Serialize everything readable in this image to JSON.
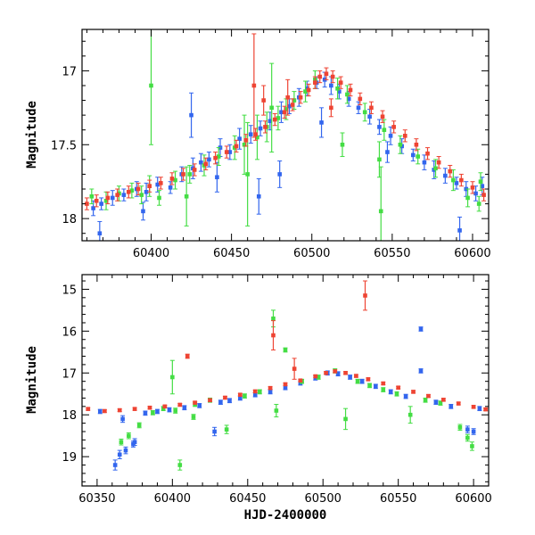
{
  "chart_data": [
    {
      "type": "scatter",
      "xlabel": "",
      "ylabel": "Magnitude",
      "xlim": [
        60357,
        60610
      ],
      "ylim": [
        18.15,
        16.72
      ],
      "y_inverted": true,
      "xticks": [
        60400,
        60450,
        60500,
        60550,
        60600
      ],
      "yticks": [
        17,
        17.5,
        18
      ],
      "xtick_labels": [
        "60400",
        "60450",
        "60500",
        "60550",
        "60600"
      ],
      "ytick_labels": [
        "17",
        "17.5",
        "18"
      ],
      "grid": false,
      "legend": "none",
      "series": [
        {
          "color": "#3366ee",
          "x": [
            60364,
            60369,
            60376,
            60383,
            60391,
            60397,
            60404,
            60412,
            60419,
            60426,
            60431,
            60436,
            60443,
            60449,
            60455,
            60462,
            60468,
            60474,
            60481,
            60486,
            60492,
            60497,
            60503,
            60508,
            60512,
            60517,
            60523,
            60529,
            60536,
            60542,
            60549,
            60556,
            60563,
            60570,
            60576,
            60583,
            60590,
            60596,
            60602,
            60606,
            60368,
            60395,
            60425,
            60441,
            60467,
            60480,
            60506,
            60547,
            60592
          ],
          "y": [
            17.93,
            17.9,
            17.86,
            17.84,
            17.8,
            17.82,
            17.77,
            17.79,
            17.7,
            17.66,
            17.62,
            17.6,
            17.52,
            17.55,
            17.46,
            17.43,
            17.39,
            17.34,
            17.28,
            17.24,
            17.18,
            17.12,
            17.08,
            17.06,
            17.1,
            17.14,
            17.19,
            17.25,
            17.31,
            17.38,
            17.44,
            17.51,
            17.57,
            17.62,
            17.67,
            17.71,
            17.76,
            17.8,
            17.83,
            17.78,
            18.1,
            17.95,
            17.3,
            17.72,
            17.85,
            17.7,
            17.35,
            17.55,
            18.08
          ],
          "err": [
            0.05,
            0.04,
            0.05,
            0.04,
            0.05,
            0.06,
            0.05,
            0.04,
            0.05,
            0.07,
            0.06,
            0.05,
            0.06,
            0.05,
            0.07,
            0.06,
            0.05,
            0.06,
            0.07,
            0.05,
            0.06,
            0.05,
            0.04,
            0.05,
            0.06,
            0.05,
            0.05,
            0.04,
            0.05,
            0.05,
            0.06,
            0.05,
            0.04,
            0.05,
            0.06,
            0.05,
            0.04,
            0.05,
            0.05,
            0.06,
            0.08,
            0.06,
            0.15,
            0.1,
            0.12,
            0.09,
            0.1,
            0.07,
            0.09
          ]
        },
        {
          "color": "#44dd44",
          "x": [
            60363,
            60372,
            60380,
            60388,
            60394,
            60399,
            60405,
            60415,
            60424,
            60433,
            60442,
            60452,
            60458,
            60466,
            60472,
            60479,
            60484,
            60489,
            60496,
            60502,
            60516,
            60522,
            60533,
            60545,
            60555,
            60566,
            60577,
            60588,
            60597,
            60604,
            60400,
            60422,
            60460,
            60475,
            60519,
            60542,
            60543,
            60605
          ],
          "y": [
            17.85,
            17.88,
            17.83,
            17.81,
            17.84,
            17.78,
            17.86,
            17.74,
            17.7,
            17.64,
            17.58,
            17.52,
            17.5,
            17.45,
            17.38,
            17.32,
            17.26,
            17.2,
            17.14,
            17.06,
            17.12,
            17.16,
            17.28,
            17.4,
            17.5,
            17.58,
            17.66,
            17.74,
            17.86,
            17.9,
            17.1,
            17.85,
            17.7,
            17.25,
            17.5,
            17.6,
            17.95,
            17.75
          ],
          "err": [
            0.05,
            0.06,
            0.05,
            0.05,
            0.06,
            0.07,
            0.05,
            0.06,
            0.06,
            0.07,
            0.06,
            0.08,
            0.2,
            0.15,
            0.1,
            0.08,
            0.07,
            0.06,
            0.07,
            0.06,
            0.07,
            0.06,
            0.06,
            0.07,
            0.06,
            0.05,
            0.06,
            0.07,
            0.06,
            0.05,
            0.4,
            0.2,
            0.35,
            0.3,
            0.08,
            0.12,
            0.3,
            0.06
          ]
        },
        {
          "color": "#ee4433",
          "x": [
            60360,
            60366,
            60373,
            60379,
            60386,
            60392,
            60399,
            60406,
            60413,
            60420,
            60427,
            60434,
            60440,
            60447,
            60453,
            60459,
            60465,
            60471,
            60477,
            60483,
            60488,
            60493,
            60498,
            60502,
            60505,
            60509,
            60513,
            60518,
            60524,
            60530,
            60537,
            60544,
            60551,
            60558,
            60565,
            60572,
            60579,
            60586,
            60593,
            60600,
            60607,
            60464,
            60470,
            60485,
            60512
          ],
          "y": [
            17.9,
            17.88,
            17.86,
            17.84,
            17.82,
            17.8,
            17.78,
            17.76,
            17.73,
            17.7,
            17.67,
            17.63,
            17.59,
            17.55,
            17.51,
            17.47,
            17.43,
            17.38,
            17.33,
            17.28,
            17.23,
            17.18,
            17.13,
            17.08,
            17.04,
            17.02,
            17.04,
            17.08,
            17.13,
            17.19,
            17.25,
            17.31,
            17.38,
            17.44,
            17.5,
            17.56,
            17.62,
            17.68,
            17.74,
            17.79,
            17.84,
            17.1,
            17.2,
            17.18,
            17.25
          ],
          "err": [
            0.04,
            0.04,
            0.04,
            0.04,
            0.04,
            0.04,
            0.04,
            0.04,
            0.04,
            0.04,
            0.04,
            0.04,
            0.04,
            0.04,
            0.04,
            0.04,
            0.04,
            0.04,
            0.04,
            0.04,
            0.04,
            0.04,
            0.04,
            0.04,
            0.04,
            0.04,
            0.04,
            0.04,
            0.04,
            0.04,
            0.04,
            0.04,
            0.04,
            0.04,
            0.04,
            0.04,
            0.04,
            0.04,
            0.04,
            0.04,
            0.04,
            0.35,
            0.1,
            0.12,
            0.06
          ]
        }
      ]
    },
    {
      "type": "scatter",
      "xlabel": "HJD-2400000",
      "ylabel": "Magnitude",
      "xlim": [
        60340,
        60610
      ],
      "ylim": [
        19.7,
        14.65
      ],
      "y_inverted": true,
      "xticks": [
        60350,
        60400,
        60450,
        60500,
        60550,
        60600
      ],
      "yticks": [
        15,
        16,
        17,
        18,
        19
      ],
      "xtick_labels": [
        "60350",
        "60400",
        "60450",
        "60500",
        "60550",
        "60600"
      ],
      "ytick_labels": [
        "15",
        "16",
        "17",
        "18",
        "19"
      ],
      "grid": false,
      "legend": "none",
      "series": [
        {
          "color": "#3366ee",
          "x": [
            60352,
            60362,
            60365,
            60369,
            60374,
            60382,
            60390,
            60398,
            60408,
            60418,
            60428,
            60432,
            60438,
            60445,
            60455,
            60465,
            60475,
            60485,
            60495,
            60503,
            60510,
            60518,
            60526,
            60535,
            60545,
            60555,
            60565,
            60575,
            60585,
            60596,
            60604,
            60367,
            60375,
            60565,
            60600
          ],
          "y": [
            17.92,
            19.2,
            18.95,
            18.85,
            18.7,
            17.96,
            17.92,
            17.88,
            17.83,
            17.78,
            18.4,
            17.7,
            17.66,
            17.6,
            17.52,
            17.45,
            17.35,
            17.24,
            17.12,
            17.0,
            17.02,
            17.1,
            17.2,
            17.32,
            17.45,
            17.56,
            16.95,
            17.7,
            17.8,
            18.35,
            17.85,
            18.1,
            18.65,
            15.95,
            18.4
          ],
          "err": [
            0.05,
            0.12,
            0.1,
            0.08,
            0.07,
            0.05,
            0.05,
            0.05,
            0.05,
            0.05,
            0.1,
            0.05,
            0.05,
            0.05,
            0.05,
            0.05,
            0.05,
            0.05,
            0.05,
            0.05,
            0.05,
            0.05,
            0.05,
            0.05,
            0.05,
            0.05,
            0.05,
            0.05,
            0.05,
            0.08,
            0.05,
            0.08,
            0.08,
            0.05,
            0.07
          ]
        },
        {
          "color": "#44dd44",
          "x": [
            60366,
            60371,
            60378,
            60387,
            60394,
            60400,
            60405,
            60415,
            60425,
            60436,
            60448,
            60458,
            60467,
            60475,
            60486,
            60497,
            60508,
            60515,
            60523,
            60531,
            60540,
            60549,
            60558,
            60568,
            60578,
            60591,
            60596,
            60599,
            60402,
            60414,
            60469
          ],
          "y": [
            18.65,
            18.5,
            18.25,
            17.95,
            17.85,
            17.1,
            19.2,
            17.75,
            17.65,
            18.35,
            17.55,
            17.45,
            15.7,
            16.45,
            17.2,
            17.1,
            16.95,
            18.1,
            17.2,
            17.3,
            17.4,
            17.5,
            18.0,
            17.65,
            17.72,
            18.3,
            18.55,
            18.75,
            17.9,
            18.05,
            17.9
          ],
          "err": [
            0.07,
            0.07,
            0.06,
            0.05,
            0.05,
            0.4,
            0.12,
            0.05,
            0.05,
            0.1,
            0.05,
            0.05,
            0.2,
            0.05,
            0.05,
            0.05,
            0.05,
            0.25,
            0.05,
            0.05,
            0.05,
            0.05,
            0.2,
            0.05,
            0.05,
            0.07,
            0.08,
            0.1,
            0.06,
            0.06,
            0.15
          ]
        },
        {
          "color": "#ee4433",
          "x": [
            60344,
            60355,
            60365,
            60375,
            60385,
            60395,
            60405,
            60415,
            60425,
            60435,
            60445,
            60455,
            60465,
            60475,
            60485,
            60495,
            60502,
            60508,
            60515,
            60522,
            60530,
            60540,
            60550,
            60560,
            60570,
            60580,
            60590,
            60600,
            60608,
            60410,
            60467,
            60481,
            60528
          ],
          "y": [
            17.86,
            17.91,
            17.89,
            17.86,
            17.83,
            17.8,
            17.76,
            17.71,
            17.65,
            17.59,
            17.52,
            17.44,
            17.36,
            17.27,
            17.18,
            17.08,
            17.0,
            16.96,
            17.0,
            17.07,
            17.15,
            17.25,
            17.35,
            17.45,
            17.55,
            17.64,
            17.73,
            17.81,
            17.87,
            16.6,
            16.1,
            16.9,
            15.15
          ],
          "err": [
            0.03,
            0.03,
            0.03,
            0.03,
            0.03,
            0.03,
            0.03,
            0.03,
            0.03,
            0.03,
            0.03,
            0.03,
            0.03,
            0.03,
            0.03,
            0.03,
            0.03,
            0.03,
            0.03,
            0.03,
            0.03,
            0.03,
            0.03,
            0.03,
            0.03,
            0.03,
            0.03,
            0.03,
            0.03,
            0.05,
            0.35,
            0.25,
            0.35
          ]
        }
      ]
    }
  ]
}
